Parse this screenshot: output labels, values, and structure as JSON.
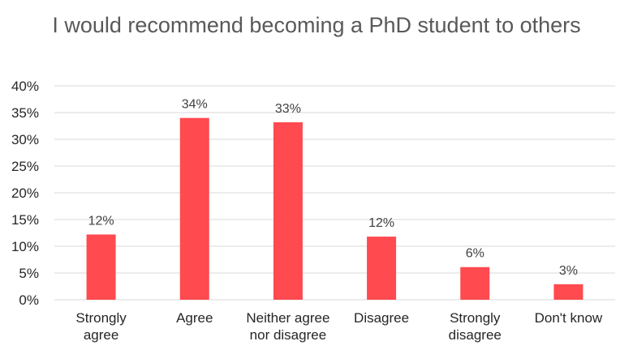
{
  "chart_data": {
    "type": "bar",
    "title": "I would recommend becoming a PhD student to others",
    "categories": [
      [
        "Strongly",
        "agree"
      ],
      [
        "Agree"
      ],
      [
        "Neither agree",
        "nor disagree"
      ],
      [
        "Disagree"
      ],
      [
        "Strongly",
        "disagree"
      ],
      [
        "Don't know"
      ]
    ],
    "values": [
      12.2,
      34,
      33.2,
      11.8,
      6.1,
      2.9
    ],
    "data_labels": [
      "12%",
      "34%",
      "33%",
      "12%",
      "6%",
      "3%"
    ],
    "yticks": [
      "0%",
      "5%",
      "10%",
      "15%",
      "20%",
      "25%",
      "30%",
      "35%",
      "40%"
    ],
    "ylim": [
      0,
      40
    ],
    "grid": true,
    "colors": {
      "bar": "#ff4a4f",
      "grid": "#d9d9d9",
      "title": "#595959"
    }
  }
}
